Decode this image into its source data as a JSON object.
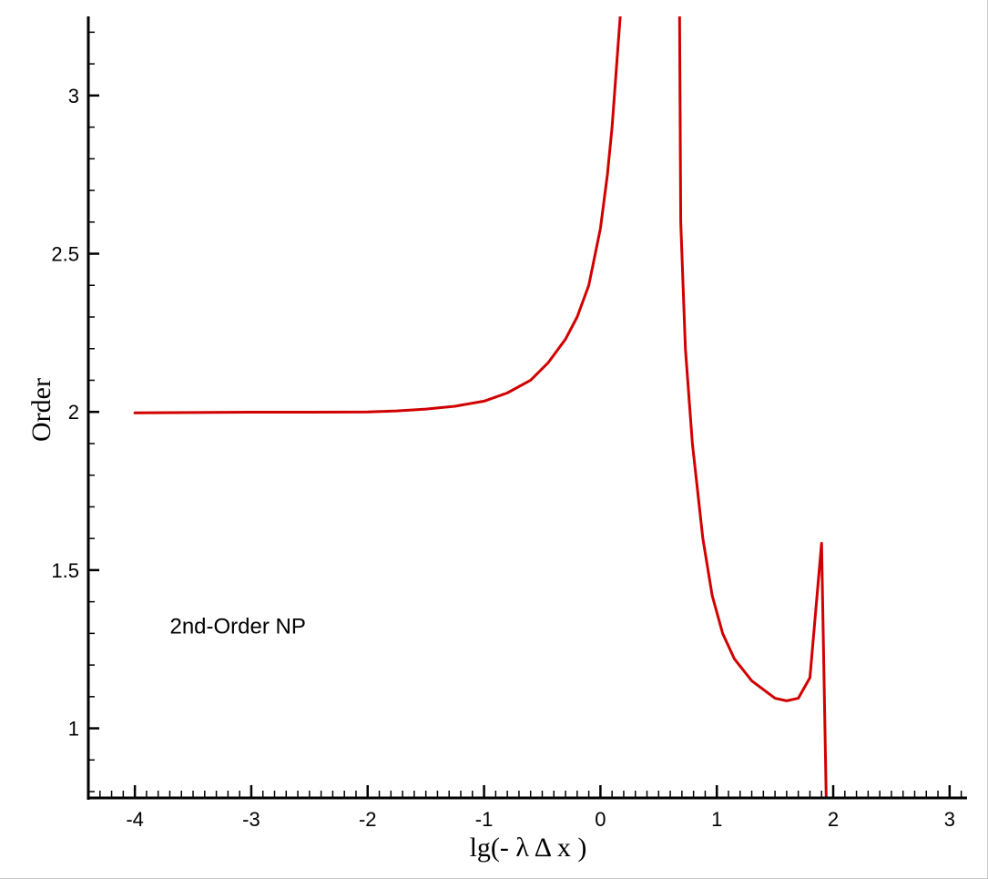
{
  "chart_data": {
    "type": "line",
    "title": "",
    "xlabel": "lg(- λ Δ x )",
    "ylabel": "Order",
    "xlim": [
      -4.4,
      3.15
    ],
    "ylim": [
      0.78,
      3.25
    ],
    "grid": false,
    "x_ticks": [
      -4,
      -3,
      -2,
      -1,
      0,
      1,
      2,
      3
    ],
    "x_tick_labels": [
      "-4",
      "-3",
      "-2",
      "-1",
      "0",
      "1",
      "2",
      "3"
    ],
    "y_ticks": [
      1,
      1.5,
      2,
      2.5,
      3
    ],
    "y_tick_labels": [
      "1",
      "1.5",
      "2",
      "2.5",
      "3"
    ],
    "annotations": [
      {
        "text": "2nd-Order NP",
        "x": -3.7,
        "y": 1.3
      }
    ],
    "series": [
      {
        "color": "#d10000",
        "segments": [
          [
            [
              -4.0,
              1.997
            ],
            [
              -3.5,
              1.998
            ],
            [
              -3.0,
              1.999
            ],
            [
              -2.5,
              1.999
            ],
            [
              -2.0,
              2.0
            ],
            [
              -1.75,
              2.003
            ],
            [
              -1.5,
              2.009
            ],
            [
              -1.25,
              2.018
            ],
            [
              -1.0,
              2.034
            ],
            [
              -0.8,
              2.06
            ],
            [
              -0.6,
              2.1
            ],
            [
              -0.45,
              2.155
            ],
            [
              -0.3,
              2.23
            ],
            [
              -0.2,
              2.3
            ],
            [
              -0.1,
              2.4
            ],
            [
              0.0,
              2.58
            ],
            [
              0.06,
              2.75
            ],
            [
              0.1,
              2.9
            ],
            [
              0.13,
              3.05
            ],
            [
              0.17,
              3.25
            ]
          ],
          [
            [
              0.68,
              3.25
            ],
            [
              0.69,
              2.6
            ],
            [
              0.73,
              2.2
            ],
            [
              0.79,
              1.9
            ],
            [
              0.88,
              1.6
            ],
            [
              0.96,
              1.42
            ],
            [
              1.05,
              1.3
            ],
            [
              1.15,
              1.22
            ],
            [
              1.3,
              1.15
            ],
            [
              1.5,
              1.095
            ],
            [
              1.6,
              1.087
            ],
            [
              1.7,
              1.095
            ],
            [
              1.8,
              1.16
            ],
            [
              1.9,
              1.585
            ],
            [
              1.94,
              0.78
            ]
          ]
        ]
      }
    ]
  }
}
